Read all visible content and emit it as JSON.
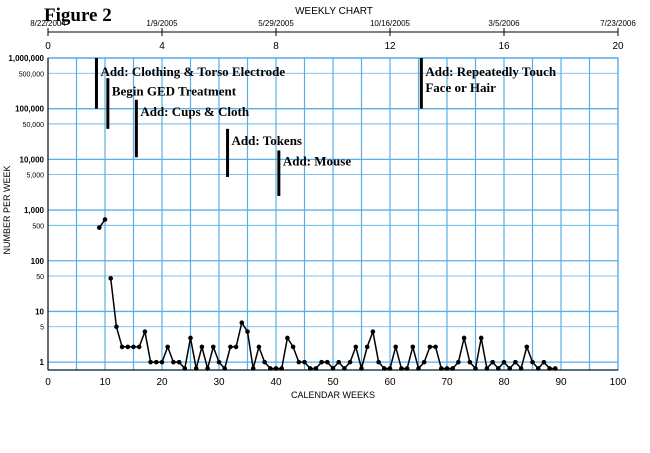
{
  "chart_data": {
    "type": "line",
    "figure_label": "Figure 2",
    "title": "WEEKLY CHART",
    "xlabel": "CALENDAR WEEKS",
    "ylabel": "NUMBER PER WEEK",
    "xlim": [
      0,
      100
    ],
    "ylim": [
      0.7,
      1000000
    ],
    "y_scale": "log",
    "grid": true,
    "x_ticks": [
      0,
      10,
      20,
      30,
      40,
      50,
      60,
      70,
      80,
      90,
      100
    ],
    "x_tick_labels": [
      "0",
      "10",
      "20",
      "30",
      "40",
      "50",
      "60",
      "70",
      "80",
      "90",
      "100"
    ],
    "top_week_labels": [
      {
        "x": 0,
        "label": "0"
      },
      {
        "x": 20,
        "label": "4"
      },
      {
        "x": 40,
        "label": "8"
      },
      {
        "x": 60,
        "label": "12"
      },
      {
        "x": 80,
        "label": "16"
      },
      {
        "x": 100,
        "label": "20"
      }
    ],
    "date_labels": [
      {
        "x": 0,
        "label": "8/22/2004"
      },
      {
        "x": 20,
        "label": "1/9/2005"
      },
      {
        "x": 40,
        "label": "5/29/2005"
      },
      {
        "x": 60,
        "label": "10/16/2005"
      },
      {
        "x": 80,
        "label": "3/5/2006"
      },
      {
        "x": 100,
        "label": "7/23/2006"
      }
    ],
    "y_ticks": [
      {
        "v": 1000000,
        "label": "1,000,000",
        "major": true
      },
      {
        "v": 500000,
        "label": "500,000",
        "major": false
      },
      {
        "v": 100000,
        "label": "100,000",
        "major": true
      },
      {
        "v": 50000,
        "label": "50,000",
        "major": false
      },
      {
        "v": 10000,
        "label": "10,000",
        "major": true
      },
      {
        "v": 5000,
        "label": "5,000",
        "major": false
      },
      {
        "v": 1000,
        "label": "1,000",
        "major": true
      },
      {
        "v": 500,
        "label": "500",
        "major": false
      },
      {
        "v": 100,
        "label": "100",
        "major": true
      },
      {
        "v": 50,
        "label": "50",
        "major": false
      },
      {
        "v": 10,
        "label": "10",
        "major": true
      },
      {
        "v": 5,
        "label": "5",
        "major": false
      },
      {
        "v": 1,
        "label": "1",
        "major": true
      }
    ],
    "series": [
      {
        "points": [
          [
            9,
            450
          ],
          [
            10,
            650
          ]
        ]
      },
      {
        "points": [
          [
            11,
            45
          ],
          [
            12,
            5
          ],
          [
            13,
            2
          ],
          [
            14,
            2
          ],
          [
            15,
            2
          ],
          [
            16,
            2
          ],
          [
            17,
            4
          ],
          [
            18,
            1
          ],
          [
            19,
            1
          ],
          [
            20,
            1
          ],
          [
            21,
            2
          ],
          [
            22,
            1
          ],
          [
            23,
            1
          ],
          [
            24,
            0.75
          ],
          [
            25,
            3
          ],
          [
            26,
            0.75
          ],
          [
            27,
            2
          ],
          [
            28,
            0.75
          ],
          [
            29,
            2
          ],
          [
            30,
            1
          ],
          [
            31,
            0.75
          ],
          [
            32,
            2
          ],
          [
            33,
            2
          ],
          [
            34,
            6
          ],
          [
            35,
            4
          ],
          [
            36,
            0.75
          ],
          [
            37,
            2
          ],
          [
            38,
            1
          ],
          [
            39,
            0.75
          ],
          [
            40,
            0.75
          ],
          [
            41,
            0.75
          ],
          [
            42,
            3
          ],
          [
            43,
            2
          ],
          [
            44,
            1
          ],
          [
            45,
            1
          ],
          [
            46,
            0.75
          ],
          [
            47,
            0.75
          ],
          [
            48,
            1
          ],
          [
            49,
            1
          ],
          [
            50,
            0.75
          ],
          [
            51,
            1
          ],
          [
            52,
            0.75
          ],
          [
            53,
            1
          ],
          [
            54,
            2
          ],
          [
            55,
            0.75
          ],
          [
            56,
            2
          ],
          [
            57,
            4
          ],
          [
            58,
            1
          ],
          [
            59,
            0.75
          ],
          [
            60,
            0.75
          ],
          [
            61,
            2
          ],
          [
            62,
            0.75
          ],
          [
            63,
            0.75
          ],
          [
            64,
            2
          ],
          [
            65,
            0.75
          ],
          [
            66,
            1
          ],
          [
            67,
            2
          ],
          [
            68,
            2
          ],
          [
            69,
            0.75
          ],
          [
            70,
            0.75
          ],
          [
            71,
            0.75
          ],
          [
            72,
            1
          ],
          [
            73,
            3
          ],
          [
            74,
            1
          ],
          [
            75,
            0.75
          ],
          [
            76,
            3
          ],
          [
            77,
            0.75
          ],
          [
            78,
            1
          ],
          [
            79,
            0.75
          ],
          [
            80,
            1
          ],
          [
            81,
            0.75
          ],
          [
            82,
            1
          ],
          [
            83,
            0.75
          ],
          [
            84,
            2
          ],
          [
            85,
            1
          ],
          [
            86,
            0.75
          ],
          [
            87,
            1
          ],
          [
            88,
            0.75
          ],
          [
            89,
            0.75
          ]
        ]
      }
    ],
    "phase_lines": [
      {
        "x": 8.5,
        "y_top": 1000000,
        "y_bottom": 100000
      },
      {
        "x": 10.5,
        "y_top": 400000,
        "y_bottom": 40000
      },
      {
        "x": 15.5,
        "y_top": 150000,
        "y_bottom": 11000
      },
      {
        "x": 31.5,
        "y_top": 40000,
        "y_bottom": 4500
      },
      {
        "x": 40.5,
        "y_top": 15000,
        "y_bottom": 1900
      },
      {
        "x": 65.5,
        "y_top": 1000000,
        "y_bottom": 100000
      }
    ],
    "annotations": [
      {
        "x": 9.2,
        "y": 550000,
        "lines": [
          "Add: Clothing & Torso Electrode"
        ]
      },
      {
        "x": 11.2,
        "y": 230000,
        "lines": [
          "Begin GED Treatment"
        ]
      },
      {
        "x": 16.2,
        "y": 90000,
        "lines": [
          "Add: Cups & Cloth"
        ]
      },
      {
        "x": 32.2,
        "y": 24000,
        "lines": [
          "Add: Tokens"
        ]
      },
      {
        "x": 41.2,
        "y": 9500,
        "lines": [
          "Add: Mouse"
        ]
      },
      {
        "x": 66.2,
        "y": 550000,
        "lines": [
          "Add: Repeatedly Touch",
          "Face or Hair"
        ]
      }
    ]
  }
}
